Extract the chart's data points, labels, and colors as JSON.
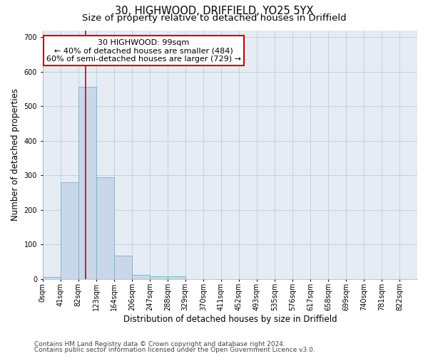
{
  "title_line1": "30, HIGHWOOD, DRIFFIELD, YO25 5YX",
  "title_line2": "Size of property relative to detached houses in Driffield",
  "xlabel": "Distribution of detached houses by size in Driffield",
  "ylabel": "Number of detached properties",
  "footnote1": "Contains HM Land Registry data © Crown copyright and database right 2024.",
  "footnote2": "Contains public sector information licensed under the Open Government Licence v3.0.",
  "bar_labels": [
    "0sqm",
    "41sqm",
    "82sqm",
    "123sqm",
    "164sqm",
    "206sqm",
    "247sqm",
    "288sqm",
    "329sqm",
    "370sqm",
    "411sqm",
    "452sqm",
    "493sqm",
    "535sqm",
    "576sqm",
    "617sqm",
    "658sqm",
    "699sqm",
    "740sqm",
    "781sqm",
    "822sqm"
  ],
  "bar_values": [
    5,
    280,
    557,
    293,
    68,
    12,
    8,
    8,
    0,
    0,
    0,
    0,
    0,
    0,
    0,
    0,
    0,
    0,
    0,
    0,
    0
  ],
  "bar_color": "#c8d8ea",
  "bar_edgecolor": "#7aafc8",
  "grid_color": "#c0ccd8",
  "background_color": "#e6ecf4",
  "vline_x": 99,
  "vline_color": "#cc0000",
  "annotation_line1": "30 HIGHWOOD: 99sqm",
  "annotation_line2": "← 40% of detached houses are smaller (484)",
  "annotation_line3": "60% of semi-detached houses are larger (729) →",
  "annotation_box_edgecolor": "#cc0000",
  "ylim": [
    0,
    720
  ],
  "yticks": [
    0,
    100,
    200,
    300,
    400,
    500,
    600,
    700
  ],
  "bin_width": 41,
  "title_fontsize": 10.5,
  "subtitle_fontsize": 9.5,
  "axis_label_fontsize": 8.5,
  "tick_fontsize": 7,
  "annotation_fontsize": 8,
  "footnote_fontsize": 6.5
}
